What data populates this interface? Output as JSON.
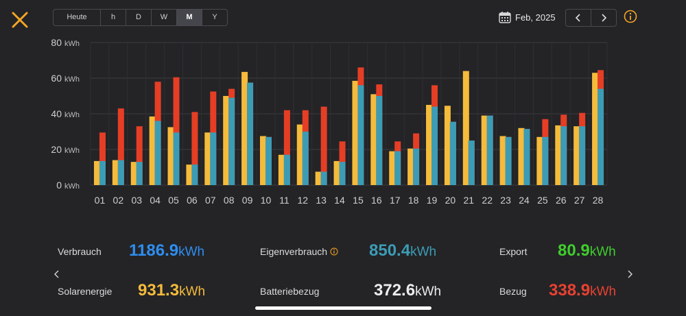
{
  "periods": [
    "Heute",
    "h",
    "D",
    "W",
    "M",
    "Y"
  ],
  "selected_period": "M",
  "date_label": "Feb, 2025",
  "colors": {
    "solar": "#f5bb3b",
    "verbrauch": "#3c9cb5",
    "bezug": "#e53e25",
    "blue_value": "#2e8ef0",
    "green_value": "#3fcd2c",
    "red_value": "#e84130",
    "accent": "#f5a623"
  },
  "chart_data": {
    "type": "bar",
    "unit": "kWh",
    "categories": [
      "01",
      "02",
      "03",
      "04",
      "05",
      "06",
      "07",
      "08",
      "09",
      "10",
      "11",
      "12",
      "13",
      "14",
      "15",
      "16",
      "17",
      "18",
      "19",
      "20",
      "21",
      "22",
      "23",
      "24",
      "25",
      "26",
      "27",
      "28"
    ],
    "ylim": [
      0,
      80
    ],
    "yticks": [
      {
        "value": 0,
        "label": "0",
        "unit": "kWh"
      },
      {
        "value": 20,
        "label": "20",
        "unit": "kWh"
      },
      {
        "value": 40,
        "label": "40",
        "unit": "kWh"
      },
      {
        "value": 60,
        "label": "60",
        "unit": "kWh"
      },
      {
        "value": 80,
        "label": "80",
        "unit": "kWh"
      }
    ],
    "grid": true,
    "series": [
      {
        "key": "solar",
        "values": [
          13.5,
          14,
          13,
          38.5,
          32.5,
          11.5,
          29.5,
          50,
          63.5,
          27.5,
          17,
          34,
          7.5,
          13.5,
          58.5,
          51,
          19,
          20.5,
          45,
          44.5,
          64,
          39,
          27.5,
          32,
          27,
          33.5,
          33,
          63
        ]
      },
      {
        "key": "verbrauch",
        "values": [
          13.5,
          14,
          13,
          36,
          29.5,
          11.5,
          29.5,
          49,
          57.5,
          27,
          17,
          30,
          7.5,
          13,
          56,
          50,
          19,
          20.5,
          44,
          35.5,
          25,
          39,
          27,
          31.5,
          27,
          33,
          33,
          54
        ]
      },
      {
        "key": "bezug",
        "values": [
          29.5,
          43,
          33,
          58,
          60.5,
          41,
          52.5,
          54,
          57.5,
          27,
          42,
          42,
          44,
          24.5,
          66,
          56.5,
          24.5,
          29,
          56,
          35.5,
          25,
          39,
          27,
          31.5,
          37,
          39.5,
          40.5,
          64.5
        ]
      }
    ]
  },
  "stats": {
    "verbrauch": {
      "label": "Verbrauch",
      "value": "1186.9",
      "unit": "kWh"
    },
    "solarenergie": {
      "label": "Solarenergie",
      "value": "931.3",
      "unit": "kWh"
    },
    "eigenverbrauch": {
      "label": "Eigenverbrauch",
      "value": "850.4",
      "unit": "kWh"
    },
    "batteriebezug": {
      "label": "Batteriebezug",
      "value": "372.6",
      "unit": "kWh"
    },
    "export": {
      "label": "Export",
      "value": "80.9",
      "unit": "kWh"
    },
    "bezug": {
      "label": "Bezug",
      "value": "338.9",
      "unit": "kWh"
    }
  },
  "icons": [
    "close-icon",
    "calendar-icon",
    "chevron-left-icon",
    "chevron-right-icon",
    "info-icon"
  ]
}
